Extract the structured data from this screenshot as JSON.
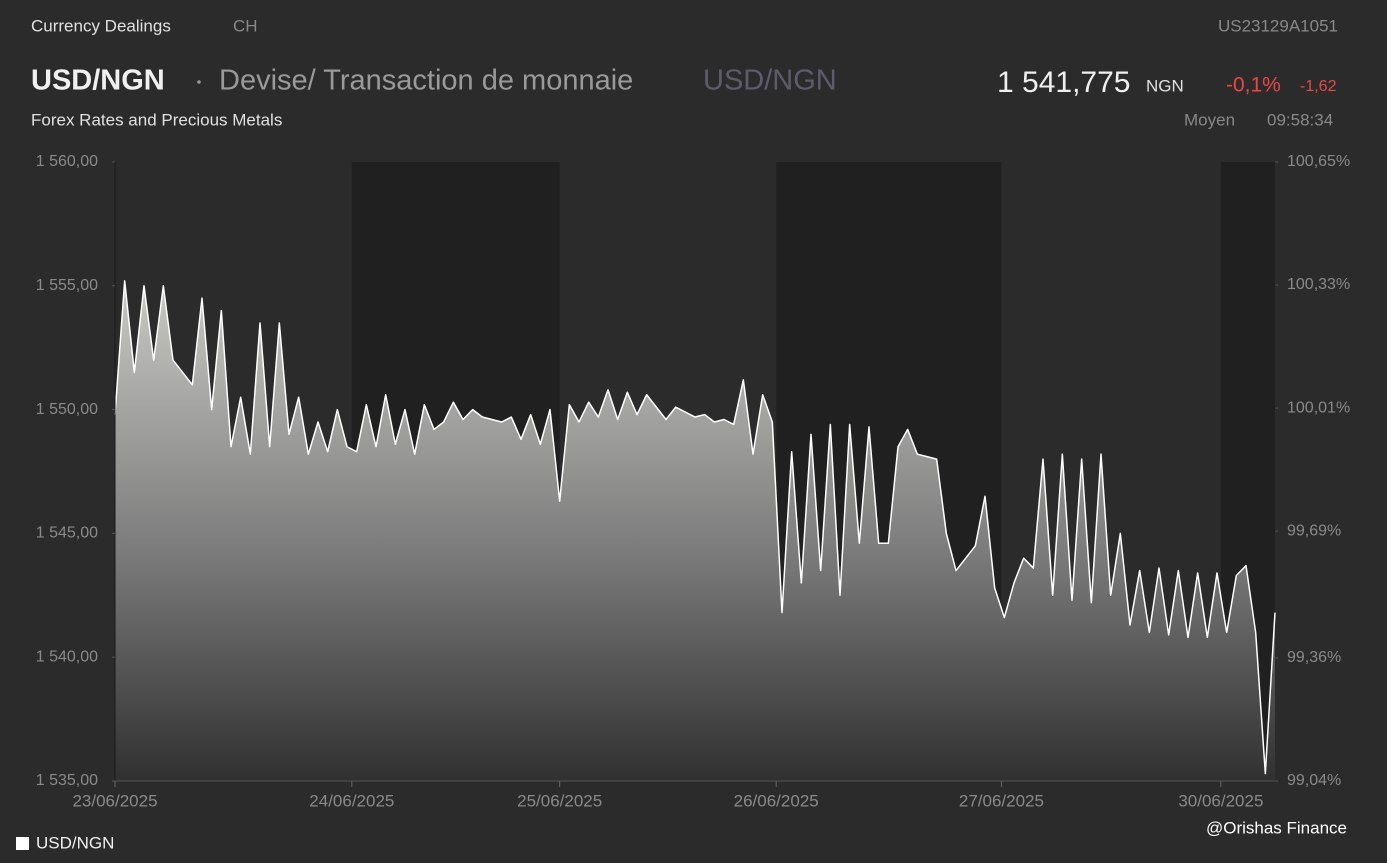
{
  "header": {
    "category": "Currency Dealings",
    "country": "CH",
    "isin": "US23129A1051",
    "symbol": "USD/NGN",
    "description": "Devise/ Transaction de monnaie",
    "symbol_alt": "USD/NGN",
    "price": "1 541,775",
    "currency": "NGN",
    "change_pct": "-0,1%",
    "change_abs": "-1,62",
    "subtitle": "Forex Rates and Precious Metals",
    "price_type": "Moyen",
    "time": "09:58:34"
  },
  "watermark": "@Orishas Finance",
  "chart_data": {
    "type": "area",
    "series": [
      {
        "name": "USD/NGN",
        "color": "#ffffff",
        "values": [
          1549.8,
          1555.2,
          1551.5,
          1555,
          1552,
          1555,
          1552,
          1551.5,
          1551,
          1554.5,
          1550,
          1554,
          1548.5,
          1550.5,
          1548.2,
          1553.5,
          1548.5,
          1553.5,
          1549,
          1550.5,
          1548.2,
          1549.5,
          1548.3,
          1550,
          1548.5,
          1548.3,
          1550.2,
          1548.5,
          1550.6,
          1548.6,
          1550,
          1548.2,
          1550.2,
          1549.2,
          1549.5,
          1550.3,
          1549.6,
          1550,
          1549.7,
          1549.6,
          1549.5,
          1549.7,
          1548.8,
          1549.8,
          1548.6,
          1550,
          1546.3,
          1550.2,
          1549.5,
          1550.3,
          1549.7,
          1550.8,
          1549.6,
          1550.7,
          1549.8,
          1550.6,
          1550.1,
          1549.6,
          1550.1,
          1549.9,
          1549.7,
          1549.8,
          1549.5,
          1549.6,
          1549.4,
          1551.2,
          1548.2,
          1550.6,
          1549.5,
          1541.8,
          1548.3,
          1543,
          1549,
          1543.5,
          1549.4,
          1542.5,
          1549.4,
          1544.6,
          1549.3,
          1544.6,
          1544.6,
          1548.5,
          1549.2,
          1548.2,
          1548.1,
          1548,
          1545,
          1543.5,
          1544,
          1544.5,
          1546.5,
          1542.8,
          1541.6,
          1543,
          1544,
          1543.6,
          1548,
          1542.5,
          1548.2,
          1542.3,
          1548,
          1542.2,
          1548.2,
          1542.5,
          1545,
          1541.3,
          1543.5,
          1541,
          1543.6,
          1540.9,
          1543.5,
          1540.8,
          1543.4,
          1540.8,
          1543.4,
          1541,
          1543.3,
          1543.7,
          1541,
          1535.3,
          1541.8
        ]
      }
    ],
    "xlim": [
      0,
      120
    ],
    "xticks": [
      {
        "value": 0,
        "label": "23/06/2025"
      },
      {
        "value": 24.5,
        "label": "24/06/2025"
      },
      {
        "value": 46,
        "label": "25/06/2025"
      },
      {
        "value": 68.4,
        "label": "26/06/2025"
      },
      {
        "value": 91.7,
        "label": "27/06/2025"
      },
      {
        "value": 114.4,
        "label": "30/06/2025"
      }
    ],
    "ylim": [
      1535,
      1560
    ],
    "yticks": [
      {
        "value": 1535,
        "label": "1 535,00"
      },
      {
        "value": 1540,
        "label": "1 540,00"
      },
      {
        "value": 1545,
        "label": "1 545,00"
      },
      {
        "value": 1550,
        "label": "1 550,00"
      },
      {
        "value": 1555,
        "label": "1 555,00"
      },
      {
        "value": 1560,
        "label": "1 560,00"
      }
    ],
    "y2lim": [
      99.04,
      100.65
    ],
    "y2ticks": [
      {
        "value": 99.04,
        "label": "99,04%"
      },
      {
        "value": 99.36,
        "label": "99,36%"
      },
      {
        "value": 99.69,
        "label": "99,69%"
      },
      {
        "value": 100.01,
        "label": "100,01%"
      },
      {
        "value": 100.33,
        "label": "100,33%"
      },
      {
        "value": 100.65,
        "label": "100,65%"
      }
    ],
    "legend": "bottom-left"
  }
}
